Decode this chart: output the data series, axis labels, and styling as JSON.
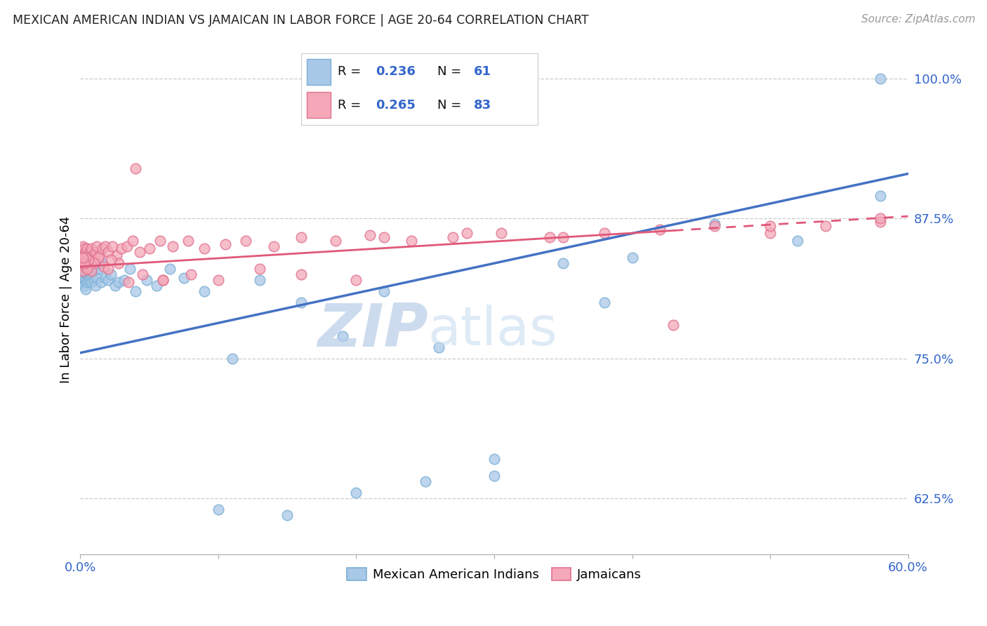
{
  "title": "MEXICAN AMERICAN INDIAN VS JAMAICAN IN LABOR FORCE | AGE 20-64 CORRELATION CHART",
  "source": "Source: ZipAtlas.com",
  "ylabel": "In Labor Force | Age 20-64",
  "xlim": [
    0.0,
    0.6
  ],
  "ylim": [
    0.575,
    1.03
  ],
  "yticks": [
    0.625,
    0.75,
    0.875,
    1.0
  ],
  "ytick_labels": [
    "62.5%",
    "75.0%",
    "87.5%",
    "100.0%"
  ],
  "xticks": [
    0.0,
    0.1,
    0.2,
    0.3,
    0.4,
    0.5,
    0.6
  ],
  "xtick_labels": [
    "0.0%",
    "",
    "",
    "",
    "",
    "",
    "60.0%"
  ],
  "blue_color": "#a8c8e8",
  "blue_edge": "#7bafd4",
  "pink_color": "#f4a8b8",
  "pink_edge": "#e07090",
  "line_blue": "#4472c4",
  "line_pink": "#e05878",
  "watermark_zip": "ZIP",
  "watermark_atlas": "atlas",
  "blue_line_x0": 0.0,
  "blue_line_y0": 0.755,
  "blue_line_x1": 0.6,
  "blue_line_y1": 0.915,
  "pink_line_x0": 0.0,
  "pink_line_y0": 0.832,
  "pink_line_x1": 0.6,
  "pink_line_y1": 0.877,
  "pink_dash_split": 0.43,
  "legend_R1": "0.236",
  "legend_N1": "61",
  "legend_R2": "0.265",
  "legend_N2": "83",
  "blue_x": [
    0.001,
    0.001,
    0.001,
    0.002,
    0.002,
    0.002,
    0.003,
    0.003,
    0.003,
    0.004,
    0.004,
    0.004,
    0.005,
    0.005,
    0.005,
    0.006,
    0.006,
    0.007,
    0.007,
    0.008,
    0.008,
    0.009,
    0.01,
    0.01,
    0.011,
    0.012,
    0.013,
    0.015,
    0.016,
    0.018,
    0.02,
    0.022,
    0.025,
    0.028,
    0.032,
    0.036,
    0.04,
    0.048,
    0.055,
    0.065,
    0.075,
    0.09,
    0.11,
    0.13,
    0.16,
    0.19,
    0.22,
    0.26,
    0.3,
    0.35,
    0.4,
    0.46,
    0.52,
    0.58,
    0.38,
    0.3,
    0.25,
    0.2,
    0.15,
    0.1,
    0.58
  ],
  "blue_y": [
    0.832,
    0.825,
    0.82,
    0.835,
    0.828,
    0.818,
    0.83,
    0.822,
    0.815,
    0.828,
    0.82,
    0.812,
    0.825,
    0.818,
    0.83,
    0.82,
    0.828,
    0.822,
    0.83,
    0.818,
    0.825,
    0.832,
    0.82,
    0.828,
    0.815,
    0.822,
    0.83,
    0.818,
    0.835,
    0.822,
    0.82,
    0.825,
    0.815,
    0.818,
    0.82,
    0.83,
    0.81,
    0.82,
    0.815,
    0.83,
    0.822,
    0.81,
    0.75,
    0.82,
    0.8,
    0.77,
    0.81,
    0.76,
    0.66,
    0.835,
    0.84,
    0.87,
    0.855,
    0.895,
    0.8,
    0.645,
    0.64,
    0.63,
    0.61,
    0.615,
    1.0
  ],
  "pink_x": [
    0.001,
    0.001,
    0.001,
    0.002,
    0.002,
    0.002,
    0.003,
    0.003,
    0.003,
    0.004,
    0.004,
    0.004,
    0.005,
    0.005,
    0.006,
    0.006,
    0.007,
    0.007,
    0.008,
    0.008,
    0.009,
    0.01,
    0.011,
    0.012,
    0.014,
    0.016,
    0.018,
    0.02,
    0.023,
    0.026,
    0.03,
    0.034,
    0.038,
    0.043,
    0.05,
    0.058,
    0.067,
    0.078,
    0.09,
    0.105,
    0.12,
    0.14,
    0.16,
    0.185,
    0.21,
    0.24,
    0.27,
    0.305,
    0.34,
    0.38,
    0.42,
    0.46,
    0.5,
    0.54,
    0.58,
    0.2,
    0.16,
    0.13,
    0.1,
    0.08,
    0.06,
    0.045,
    0.035,
    0.028,
    0.022,
    0.017,
    0.013,
    0.01,
    0.008,
    0.006,
    0.005,
    0.004,
    0.003,
    0.002,
    0.35,
    0.28,
    0.22,
    0.5,
    0.58,
    0.43,
    0.06,
    0.04,
    0.02
  ],
  "pink_y": [
    0.84,
    0.832,
    0.845,
    0.838,
    0.85,
    0.828,
    0.842,
    0.835,
    0.848,
    0.838,
    0.845,
    0.832,
    0.84,
    0.848,
    0.835,
    0.842,
    0.838,
    0.845,
    0.84,
    0.848,
    0.842,
    0.838,
    0.845,
    0.85,
    0.842,
    0.848,
    0.85,
    0.845,
    0.85,
    0.842,
    0.848,
    0.85,
    0.855,
    0.845,
    0.848,
    0.855,
    0.85,
    0.855,
    0.848,
    0.852,
    0.855,
    0.85,
    0.858,
    0.855,
    0.86,
    0.855,
    0.858,
    0.862,
    0.858,
    0.862,
    0.865,
    0.868,
    0.862,
    0.868,
    0.872,
    0.82,
    0.825,
    0.83,
    0.82,
    0.825,
    0.82,
    0.825,
    0.818,
    0.835,
    0.838,
    0.832,
    0.84,
    0.835,
    0.828,
    0.838,
    0.83,
    0.84,
    0.835,
    0.84,
    0.858,
    0.862,
    0.858,
    0.868,
    0.875,
    0.78,
    0.82,
    0.92,
    0.83
  ]
}
